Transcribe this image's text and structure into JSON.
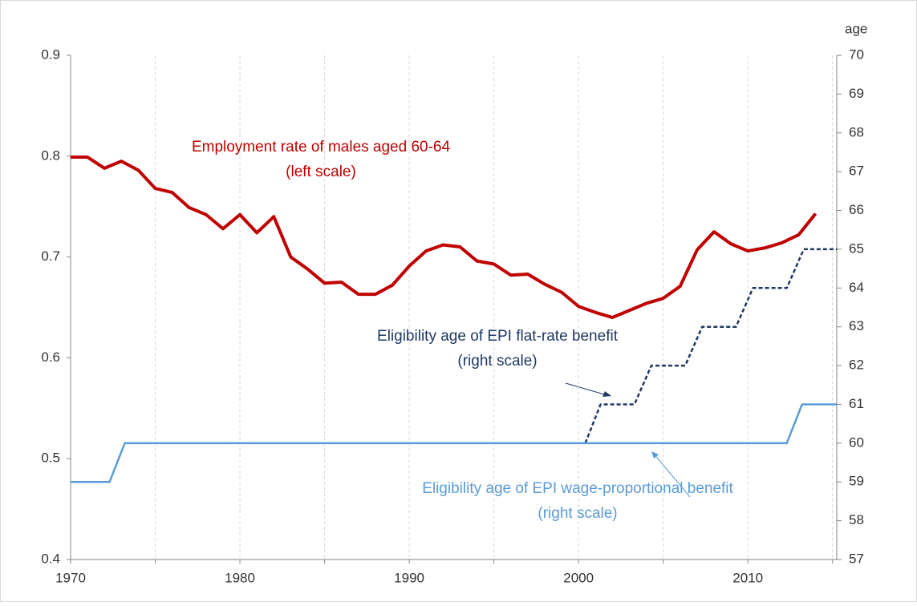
{
  "chart_data": {
    "type": "line",
    "y2_label": "age",
    "xlim": [
      1970,
      2015.25
    ],
    "xticks": [
      1970,
      1980,
      1990,
      2000,
      2010
    ],
    "xminorticks": [
      1975,
      1985,
      1995,
      2005,
      2015
    ],
    "ylim": [
      0.4,
      0.9
    ],
    "yticks": [
      0.4,
      0.5,
      0.6,
      0.7,
      0.8,
      0.9
    ],
    "y2lim": [
      57,
      70
    ],
    "y2ticks": [
      57,
      58,
      59,
      60,
      61,
      62,
      63,
      64,
      65,
      66,
      67,
      68,
      69,
      70
    ],
    "grid": true,
    "series": [
      {
        "name": "Employment rate of males aged 60-64",
        "color": "#c00000",
        "dashed": false,
        "width": 4,
        "x": [
          1970,
          1971,
          1972,
          1973,
          1974,
          1975,
          1976,
          1977,
          1978,
          1979,
          1980,
          1981,
          1982,
          1983,
          1984,
          1985,
          1986,
          1987,
          1988,
          1989,
          1990,
          1991,
          1992,
          1993,
          1994,
          1995,
          1996,
          1997,
          1998,
          1999,
          2000,
          2001,
          2002,
          2003,
          2004,
          2005,
          2006,
          2007,
          2008,
          2009,
          2010,
          2011,
          2012,
          2013,
          2014
        ],
        "values": [
          0.799,
          0.799,
          0.788,
          0.795,
          0.786,
          0.768,
          0.764,
          0.749,
          0.742,
          0.728,
          0.742,
          0.724,
          0.74,
          0.7,
          0.688,
          0.674,
          0.675,
          0.663,
          0.663,
          0.672,
          0.691,
          0.706,
          0.712,
          0.71,
          0.696,
          0.693,
          0.682,
          0.683,
          0.673,
          0.665,
          0.651,
          0.645,
          0.64,
          0.647,
          0.654,
          0.659,
          0.671,
          0.707,
          0.725,
          0.713,
          0.706,
          0.709,
          0.714,
          0.722,
          0.743
        ]
      },
      {
        "name": "Eligibility age of EPI flat-rate benefit",
        "color": "#1f3864",
        "dashed": true,
        "width": 2.5,
        "axis": "y2",
        "x": [
          2000.4,
          2001.3,
          2003.3,
          2004.3,
          2006.3,
          2007.3,
          2009.3,
          2010.3,
          2012.3,
          2013.3,
          2015.25
        ],
        "values": [
          60,
          61,
          61,
          62,
          62,
          63,
          63,
          64,
          64,
          65,
          65
        ]
      },
      {
        "name": "Eligibility age of EPI wage-proportional benefit",
        "color": "#5b9bd5",
        "dashed": false,
        "width": 2.5,
        "axis": "y2",
        "x": [
          1970,
          1972.3,
          1973.2,
          2012.3,
          2013.2,
          2015.25
        ],
        "values": [
          59,
          59,
          60,
          60,
          61,
          61
        ]
      }
    ],
    "annotations": [
      {
        "lines": [
          "Employment rate of males aged 60-64",
          "(left scale)"
        ],
        "color": "#c00000"
      },
      {
        "lines": [
          "Eligibility age of EPI flat-rate benefit",
          "(right scale)"
        ],
        "color": "#1f3864"
      },
      {
        "lines": [
          "Eligibility age of EPI wage-proportional benefit",
          "(right scale)"
        ],
        "color": "#5b9bd5"
      }
    ]
  }
}
